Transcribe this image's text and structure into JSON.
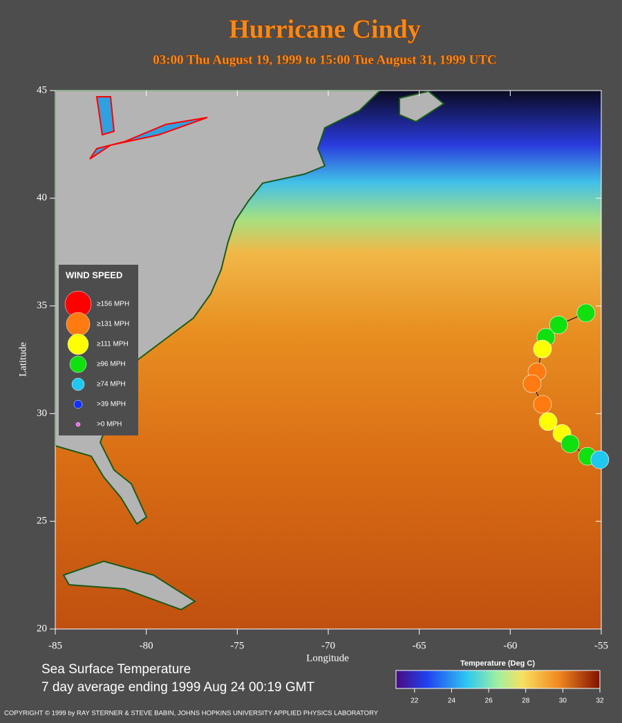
{
  "chart_data": {
    "type": "map",
    "title": "Hurricane Cindy",
    "subtitle": "03:00 Thu August 19, 1999 to 15:00 Tue August 31, 1999  UTC",
    "x_label": "Longitude",
    "y_label": "Latitude",
    "xlim": [
      -85,
      -55
    ],
    "xticks": [
      -85,
      -80,
      -75,
      -70,
      -65,
      -60,
      -55
    ],
    "ylim": [
      20,
      45
    ],
    "yticks": [
      20,
      25,
      30,
      35,
      40,
      45
    ],
    "legend_title": "WIND SPEED",
    "legend": [
      {
        "label": "≥156 MPH",
        "color": "#ff0000"
      },
      {
        "label": "≥131 MPH",
        "color": "#ff7a10"
      },
      {
        "label": "≥111 MPH",
        "color": "#ffff00"
      },
      {
        "label": "≥96 MPH",
        "color": "#10e010"
      },
      {
        "label": "≥74 MPH",
        "color": "#20c8f0"
      },
      {
        "label": ">39 MPH",
        "color": "#1030ff"
      },
      {
        "label": ">0 MPH",
        "color": "#ff60ff"
      }
    ],
    "track": {
      "lon": [
        -55.84,
        -57.35,
        -58.04,
        -58.23,
        -58.53,
        -58.8,
        -58.23,
        -57.92,
        -57.16,
        -56.71,
        -55.76,
        -55.08
      ],
      "lat": [
        34.67,
        34.12,
        33.54,
        33.0,
        31.94,
        31.39,
        30.43,
        29.63,
        29.08,
        28.6,
        28.02,
        27.86
      ],
      "colors": [
        "#10e010",
        "#10e010",
        "#10e010",
        "#ffff00",
        "#ff7a10",
        "#ff7a10",
        "#ff7a10",
        "#ffff00",
        "#ffff00",
        "#10e010",
        "#10e010",
        "#20c8f0"
      ]
    },
    "caption": [
      "Sea Surface Temperature",
      "7 day average ending 1999 Aug 24 00:19 GMT"
    ],
    "colorbar": {
      "title": "Temperature (Deg C)",
      "lim": [
        21,
        32
      ],
      "ticks": [
        22,
        24,
        26,
        28,
        30,
        32
      ]
    },
    "copyright": "COPYRIGHT © 1999 by RAY STERNER & STEVE BABIN, JOHNS HOPKINS UNIVERSITY APPLIED PHYSICS LABORATORY"
  }
}
